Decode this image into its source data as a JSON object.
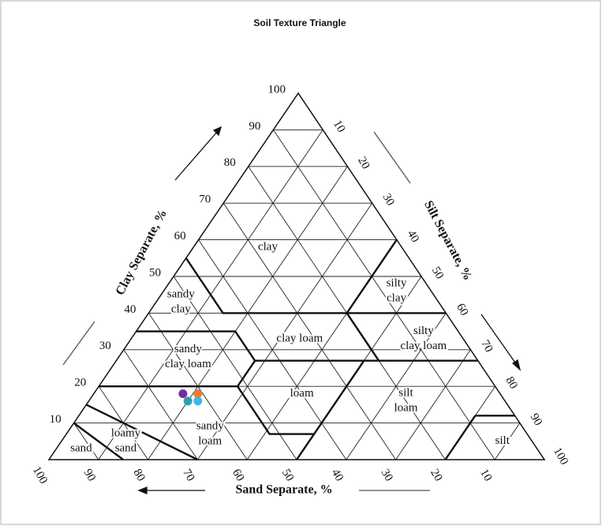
{
  "chart_data": {
    "type": "ternary",
    "title": "Soil Texture Triangle",
    "axes": {
      "clay": {
        "label": "Clay Separate, %",
        "ticks": [
          10,
          20,
          30,
          40,
          50,
          60,
          70,
          80,
          90,
          100
        ]
      },
      "silt": {
        "label": "Silt Separate, %",
        "ticks": [
          10,
          20,
          30,
          40,
          50,
          60,
          70,
          80,
          90,
          100
        ]
      },
      "sand": {
        "label": "Sand Separate, %",
        "ticks": [
          10,
          20,
          30,
          40,
          50,
          60,
          70,
          80,
          90,
          100
        ]
      }
    },
    "regions": [
      [
        "clay"
      ],
      [
        "sandy",
        "clay"
      ],
      [
        "silty",
        "clay"
      ],
      [
        "sandy",
        "clay loam"
      ],
      [
        "clay loam"
      ],
      [
        "silty",
        "clay loam"
      ],
      [
        "loam"
      ],
      [
        "silt",
        "loam"
      ],
      [
        "sandy",
        "loam"
      ],
      [
        "loamy",
        "sand"
      ],
      [
        "sand"
      ],
      [
        "silt"
      ]
    ],
    "points": [
      {
        "sand": 64,
        "clay": 18,
        "color": "#7030a0"
      },
      {
        "sand": 61,
        "clay": 18,
        "color": "#ed7d31"
      },
      {
        "sand": 64,
        "clay": 16,
        "color": "#2e9fb0"
      },
      {
        "sand": 62,
        "clay": 16,
        "color": "#41b6e6"
      }
    ]
  }
}
